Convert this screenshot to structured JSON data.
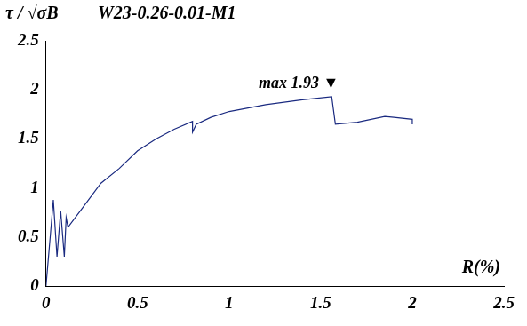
{
  "chart_data": {
    "type": "line",
    "title": "W23-0.26-0.01-M1",
    "y_label": "τ / √σB",
    "x_label": "R(%)",
    "annotation": "max 1.93 ▼",
    "x": [
      0,
      0.04,
      0.06,
      0.08,
      0.1,
      0.11,
      0.12,
      0.2,
      0.3,
      0.4,
      0.5,
      0.6,
      0.7,
      0.8,
      0.8,
      0.82,
      0.9,
      1.0,
      1.2,
      1.4,
      1.56,
      1.58,
      1.7,
      1.85,
      1.9,
      2.0,
      2.0
    ],
    "series": [
      {
        "name": "W23-0.26-0.01-M1",
        "color": "#1a2a80",
        "values": [
          0,
          0.88,
          0.3,
          0.77,
          0.3,
          0.7,
          0.6,
          0.8,
          1.05,
          1.2,
          1.38,
          1.5,
          1.6,
          1.68,
          1.57,
          1.65,
          1.72,
          1.78,
          1.85,
          1.9,
          1.93,
          1.65,
          1.67,
          1.73,
          1.72,
          1.7,
          1.65
        ]
      }
    ],
    "xlim": [
      0,
      2.5
    ],
    "xticks": [
      0,
      0.5,
      1,
      1.5,
      2,
      2.5
    ],
    "ylim": [
      0,
      2.5
    ],
    "yticks": [
      0,
      0.5,
      1,
      1.5,
      2,
      2.5
    ],
    "grid": false,
    "marker": "none",
    "line_style": "solid"
  }
}
